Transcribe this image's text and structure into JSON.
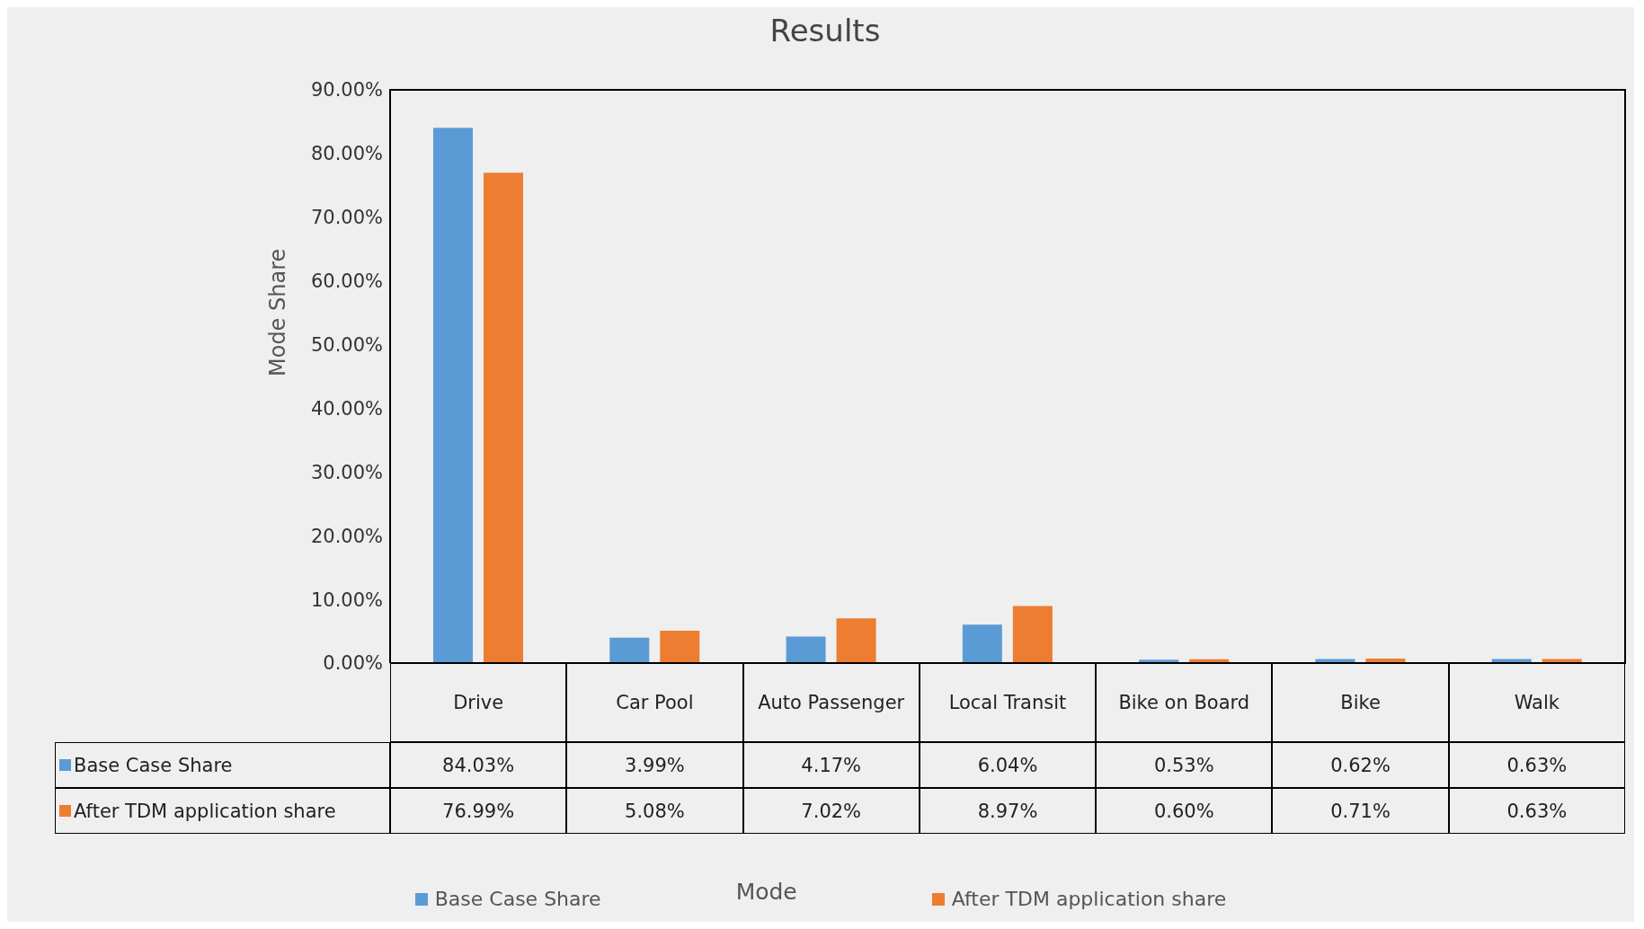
{
  "chart_data": {
    "type": "bar",
    "title": "Results",
    "annotations": [
      "Mode"
    ],
    "ylabel": "Mode Share",
    "categories": [
      "Drive",
      "Car Pool",
      "Auto Passenger",
      "Local Transit",
      "Bike on Board",
      "Bike",
      "Walk"
    ],
    "series": [
      {
        "name": "Base Case Share",
        "color": "#5b9bd5",
        "values": [
          84.03,
          3.99,
          4.17,
          6.04,
          0.53,
          0.62,
          0.63
        ],
        "value_labels": [
          "84.03%",
          "3.99%",
          "4.17%",
          "6.04%",
          "0.53%",
          "0.62%",
          "0.63%"
        ]
      },
      {
        "name": "After TDM application share",
        "color": "#ed7d31",
        "values": [
          76.99,
          5.08,
          7.02,
          8.97,
          0.6,
          0.71,
          0.63
        ],
        "value_labels": [
          "76.99%",
          "5.08%",
          "7.02%",
          "8.97%",
          "0.60%",
          "0.71%",
          "0.63%"
        ]
      }
    ],
    "ylim": [
      0,
      90
    ],
    "yticks": [
      {
        "value": 0,
        "label": "0.00%"
      },
      {
        "value": 10,
        "label": "10.00%"
      },
      {
        "value": 20,
        "label": "20.00%"
      },
      {
        "value": 30,
        "label": "30.00%"
      },
      {
        "value": 40,
        "label": "40.00%"
      },
      {
        "value": 50,
        "label": "50.00%"
      },
      {
        "value": 60,
        "label": "60.00%"
      },
      {
        "value": 70,
        "label": "70.00%"
      },
      {
        "value": 80,
        "label": "80.00%"
      },
      {
        "value": 90,
        "label": "90.00%"
      }
    ],
    "legend": "bottom",
    "grid": false
  }
}
